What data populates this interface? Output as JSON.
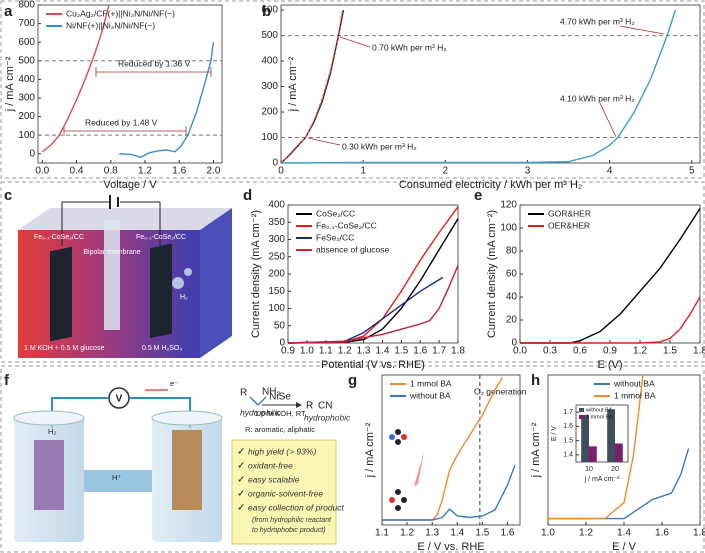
{
  "panel_labels": [
    "a",
    "b",
    "c",
    "d",
    "e",
    "f",
    "g",
    "h"
  ],
  "chart_data": [
    {
      "type": "line",
      "xlabel": "Voltage / V",
      "ylabel": "j / mA cm⁻²",
      "xlim": [
        -0.05,
        2.1
      ],
      "ylim": [
        -50,
        800
      ],
      "xticks": [
        {
          "value": 0,
          "label": "0.0"
        },
        0.4,
        0.8,
        1.2,
        1.6,
        {
          "value": 2,
          "label": "2.0"
        }
      ],
      "yticks": [
        0,
        100,
        200,
        300,
        400,
        500,
        600,
        700,
        800
      ],
      "hlines": [
        500,
        100
      ],
      "legend": "upper left",
      "annotations": [
        "Reduced by 1.36 V",
        "Reduced by 1.48 V"
      ],
      "series": [
        {
          "name": "Cu₂Ag₂/CF(+)||Ni₃N/Ni/NF(−)",
          "color": "#e04a4a",
          "x": [
            0,
            0.1,
            0.2,
            0.3,
            0.4,
            0.5,
            0.6,
            0.7,
            0.78
          ],
          "values": [
            10,
            45,
            100,
            190,
            290,
            400,
            520,
            660,
            800
          ]
        },
        {
          "name": "Ni/NF(+)||Ni₃N/Ni/NF(−)",
          "color": "#3a8fc4",
          "x": [
            0.9,
            1.05,
            1.15,
            1.25,
            1.35,
            1.45,
            1.55,
            1.62,
            1.7,
            1.8,
            1.9,
            1.97,
            2.0
          ],
          "values": [
            0,
            -5,
            -20,
            5,
            15,
            20,
            10,
            40,
            100,
            220,
            380,
            500,
            600
          ]
        }
      ]
    },
    {
      "type": "line",
      "xlabel": "Consumed electricity / kWh per m³ H₂",
      "ylabel": "j / mA cm⁻²",
      "xlim": [
        0,
        5.1
      ],
      "ylim": [
        0,
        620
      ],
      "xticks": [
        0,
        1,
        2,
        3,
        4,
        5
      ],
      "yticks": [
        0,
        100,
        200,
        300,
        400,
        500,
        600
      ],
      "hlines": [
        500,
        100
      ],
      "annotations": [
        "4.70 kWh per m³ H₂",
        "0.70 kWh per m³ H₂",
        "4.10 kWh per m³ H₂",
        "0.30 kWh per m³ H₂"
      ],
      "series": [
        {
          "color": "#222222",
          "x": [
            0,
            0.1,
            0.2,
            0.3,
            0.4,
            0.5,
            0.6,
            0.7,
            0.76
          ],
          "values": [
            0,
            30,
            65,
            100,
            160,
            240,
            350,
            500,
            600
          ]
        },
        {
          "color": "#e04a4a",
          "linestyle": "dashed",
          "x": [
            0,
            0.1,
            0.2,
            0.3,
            0.4,
            0.5,
            0.6,
            0.7,
            0.75
          ],
          "values": [
            0,
            32,
            68,
            100,
            165,
            250,
            360,
            505,
            600
          ]
        },
        {
          "color": "#3a9ec9",
          "x": [
            0,
            1,
            2,
            3,
            3.5,
            3.8,
            4.0,
            4.1,
            4.3,
            4.5,
            4.7,
            4.8
          ],
          "values": [
            0,
            2,
            2,
            2,
            5,
            30,
            70,
            100,
            200,
            330,
            500,
            600
          ]
        }
      ]
    },
    {
      "type": "line",
      "xlabel": "Potential (V vs. RHE)",
      "ylabel": "Current density (mA cm⁻²)",
      "xlim": [
        0.9,
        1.8
      ],
      "ylim": [
        0,
        400
      ],
      "xticks": [
        0.9,
        {
          "value": 1,
          "label": "1.0"
        },
        1.1,
        1.2,
        1.3,
        1.4,
        1.5,
        1.6,
        1.7,
        1.8
      ],
      "yticks": [
        0,
        50,
        100,
        150,
        200,
        250,
        300,
        350,
        400
      ],
      "legend": "upper left",
      "series": [
        {
          "name": "CoSe₂/CC",
          "color": "#000000",
          "x": [
            0.9,
            1.2,
            1.3,
            1.4,
            1.5,
            1.6,
            1.7,
            1.8
          ],
          "values": [
            0,
            2,
            10,
            40,
            100,
            180,
            270,
            360
          ]
        },
        {
          "name": "Fe₀.₁-CoSe₂/CC",
          "color": "#e02020",
          "x": [
            0.9,
            1.2,
            1.3,
            1.4,
            1.5,
            1.6,
            1.7,
            1.8
          ],
          "values": [
            0,
            3,
            20,
            70,
            150,
            240,
            320,
            395
          ]
        },
        {
          "name": "FeSe₂/CC",
          "color": "#1a2a8c",
          "x": [
            0.9,
            1.2,
            1.3,
            1.4,
            1.5,
            1.6,
            1.72
          ],
          "values": [
            0,
            5,
            30,
            70,
            110,
            150,
            190
          ]
        },
        {
          "name": "absence of glucose",
          "color": "#c0203a",
          "x": [
            0.9,
            1.2,
            1.4,
            1.5,
            1.6,
            1.65,
            1.7,
            1.75,
            1.8
          ],
          "values": [
            0,
            5,
            25,
            40,
            55,
            65,
            100,
            160,
            225
          ]
        }
      ]
    },
    {
      "type": "line",
      "xlabel": "E (V)",
      "ylabel": "Current density (mA cm⁻²)",
      "xlim": [
        0,
        1.8
      ],
      "ylim": [
        0,
        120
      ],
      "xticks": [
        {
          "value": 0,
          "label": "0.0"
        },
        0.3,
        0.6,
        0.9,
        1.2,
        1.5,
        1.8
      ],
      "yticks": [
        0,
        20,
        40,
        60,
        80,
        100,
        120
      ],
      "legend": "upper left",
      "series": [
        {
          "name": "GOR&HER",
          "color": "#000000",
          "x": [
            0,
            0.5,
            0.6,
            0.8,
            1.0,
            1.2,
            1.4,
            1.6,
            1.8
          ],
          "values": [
            0,
            0,
            2,
            10,
            25,
            45,
            65,
            90,
            117
          ]
        },
        {
          "name": "OER&HER",
          "color": "#e02020",
          "x": [
            0,
            1.2,
            1.4,
            1.5,
            1.6,
            1.7,
            1.8
          ],
          "values": [
            0,
            0,
            1,
            4,
            12,
            25,
            40
          ]
        }
      ]
    },
    {
      "type": "line",
      "xlabel": "E / V vs. RHE",
      "ylabel": "j / mA cm⁻²",
      "xlim": [
        1.1,
        1.65
      ],
      "ylim": [
        -10,
        290
      ],
      "xticks": [
        1.1,
        1.2,
        1.3,
        1.4,
        1.5,
        1.6
      ],
      "vlines": [
        1.49
      ],
      "legend": "upper left",
      "annotations": [
        "O₂ generation"
      ],
      "series": [
        {
          "name": "1 mmol BA",
          "color": "#f08a2c",
          "x": [
            1.1,
            1.3,
            1.32,
            1.34,
            1.37,
            1.4,
            1.45,
            1.5,
            1.55,
            1.58
          ],
          "values": [
            0,
            0,
            10,
            40,
            100,
            130,
            170,
            210,
            260,
            285
          ]
        },
        {
          "name": "without BA",
          "color": "#3a78b8",
          "x": [
            1.1,
            1.3,
            1.34,
            1.37,
            1.4,
            1.45,
            1.5,
            1.55,
            1.6,
            1.63
          ],
          "values": [
            0,
            0,
            5,
            22,
            8,
            5,
            8,
            20,
            70,
            110
          ]
        }
      ]
    },
    {
      "type": "line",
      "xlabel": "E / V",
      "ylabel": "j / mA cm⁻²",
      "xlim": [
        1.0,
        1.8
      ],
      "ylim": [
        -2,
        45
      ],
      "xticks": [
        {
          "value": 1,
          "label": "1.0"
        },
        1.2,
        1.4,
        1.6,
        1.8
      ],
      "legend": "upper center",
      "series": [
        {
          "name": "without BA",
          "color": "#3a78b8",
          "x": [
            1.0,
            1.4,
            1.5,
            1.55,
            1.6,
            1.65,
            1.7,
            1.74
          ],
          "values": [
            0,
            0,
            4,
            6,
            7,
            8,
            14,
            22
          ]
        },
        {
          "name": "1 mmol BA",
          "color": "#f08a2c",
          "x": [
            1.0,
            1.3,
            1.4,
            1.45,
            1.5
          ],
          "values": [
            0,
            0,
            5,
            20,
            45
          ]
        }
      ]
    },
    {
      "type": "bar",
      "xlabel": "j / mA cm⁻²",
      "ylabel": "E / V",
      "categories": [
        "10",
        "20"
      ],
      "ylim": [
        1.35,
        1.75
      ],
      "yticks": [
        1.4,
        1.5,
        1.6,
        1.7
      ],
      "legend": "upper left",
      "series": [
        {
          "name": "without BA",
          "color": "#3d4f5c",
          "values": [
            1.68,
            1.72
          ]
        },
        {
          "name": "1 mmol BA",
          "color": "#7b1f6a",
          "values": [
            1.46,
            1.48
          ]
        }
      ]
    }
  ],
  "illustration_c": {
    "left_electrode": "Fe₀.₁-CoSe₂/CC",
    "right_electrode": "Fe₀.₁-CoSe₂/CC",
    "membrane": "Bipolar membrane",
    "gas": "H₂",
    "anolyte": "1 M KOH + 0.5 M glucose",
    "catholyte": "0.5 M H₂SO₄"
  },
  "illustration_f": {
    "meter": "V",
    "electron": "e⁻",
    "gas": "H₂",
    "proton": "H⁺",
    "reactant_r": "R",
    "reactant_group": "NH₂",
    "reactant_note": "hydrophilic",
    "catalyst": "NiSe",
    "conditions": "1.0 M KOH, RT",
    "product_r": "R",
    "product_group": "CN",
    "product_note": "hydrophobic",
    "scope": "R: aromatic, aliphatic",
    "benefits": [
      "high yield (> 93%)",
      "oxidant-free",
      "easy scalable",
      "organic-solvent-free",
      "easy collection of product"
    ],
    "benefit_note": [
      "(from hydrophilic reactant",
      "to hydrophobic product)"
    ]
  }
}
